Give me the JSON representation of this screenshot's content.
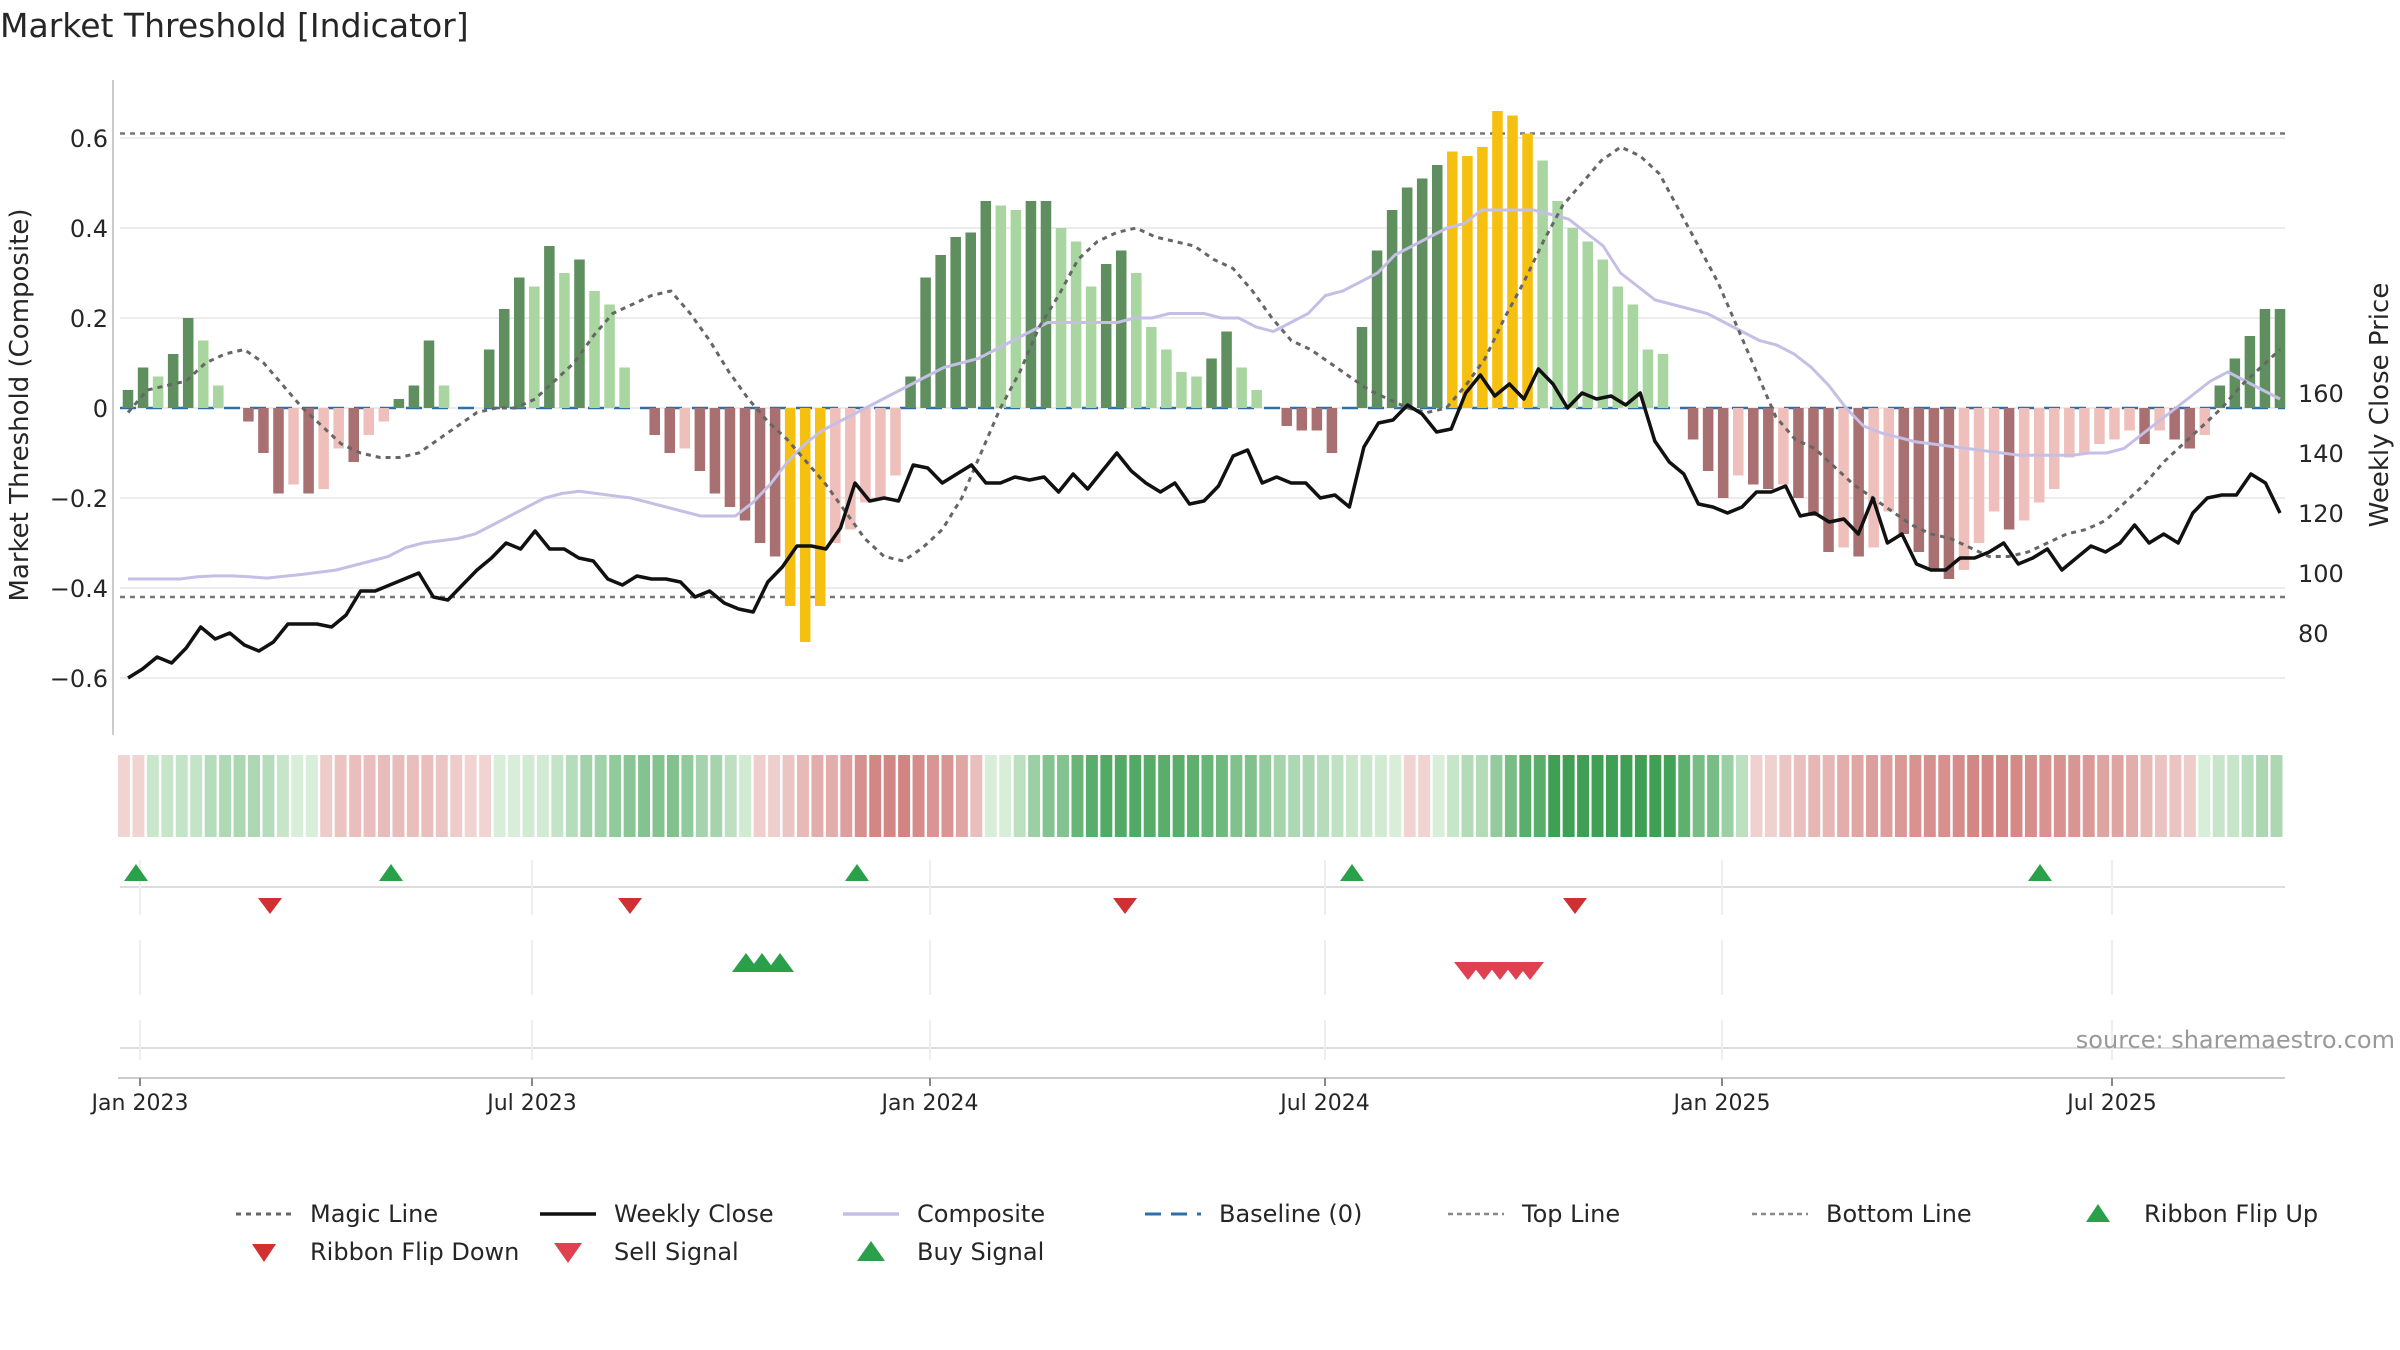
{
  "title": "Market Threshold [Indicator]",
  "source": "source: sharemaestro.com",
  "chart_data": {
    "type": "bar",
    "title": "Market Threshold [Indicator]",
    "ylabel_left": "Market Threshold (Composite)",
    "ylabel_right": "Weekly Close Price",
    "left_ticks": [
      0.6,
      0.4,
      0.2,
      0,
      -0.2,
      -0.4,
      -0.6
    ],
    "left_tick_labels": [
      "0.6",
      "0.4",
      "0.2",
      "0",
      "−0.2",
      "−0.4",
      "−0.6"
    ],
    "right_ticks": [
      160,
      140,
      120,
      100,
      80
    ],
    "right_tick_labels": [
      "160",
      "140",
      "120",
      "100",
      "80"
    ],
    "x_ticks": [
      "Jan 2023",
      "Jul 2023",
      "Jan 2024",
      "Jul 2024",
      "Jan 2025",
      "Jul 2025"
    ],
    "top_line": 0.61,
    "bottom_line": -0.42,
    "composite_bars": [
      0.04,
      0.09,
      0.07,
      0.12,
      0.2,
      0.15,
      0.05,
      0.0,
      -0.03,
      -0.1,
      -0.19,
      -0.17,
      -0.19,
      -0.18,
      -0.09,
      -0.12,
      -0.06,
      -0.03,
      0.02,
      0.05,
      0.15,
      0.05,
      0.0,
      0.0,
      0.13,
      0.22,
      0.29,
      0.27,
      0.36,
      0.3,
      0.33,
      0.26,
      0.23,
      0.09,
      0.0,
      -0.06,
      -0.1,
      -0.09,
      -0.14,
      -0.19,
      -0.22,
      -0.25,
      -0.3,
      -0.33,
      -0.44,
      -0.52,
      -0.44,
      -0.3,
      -0.27,
      -0.21,
      -0.2,
      -0.15,
      0.07,
      0.29,
      0.34,
      0.38,
      0.39,
      0.46,
      0.45,
      0.44,
      0.46,
      0.46,
      0.4,
      0.37,
      0.27,
      0.32,
      0.35,
      0.3,
      0.18,
      0.13,
      0.08,
      0.07,
      0.11,
      0.17,
      0.09,
      0.04,
      0.0,
      -0.04,
      -0.05,
      -0.05,
      -0.1,
      0.0,
      0.18,
      0.35,
      0.44,
      0.49,
      0.51,
      0.54,
      0.57,
      0.56,
      0.58,
      0.66,
      0.65,
      0.61,
      0.55,
      0.46,
      0.4,
      0.37,
      0.33,
      0.27,
      0.23,
      0.13,
      0.12,
      0.0,
      -0.07,
      -0.14,
      -0.2,
      -0.15,
      -0.17,
      -0.18,
      -0.17,
      -0.2,
      -0.24,
      -0.32,
      -0.31,
      -0.33,
      -0.31,
      -0.23,
      -0.28,
      -0.32,
      -0.36,
      -0.38,
      -0.36,
      -0.3,
      -0.23,
      -0.27,
      -0.25,
      -0.21,
      -0.18,
      -0.11,
      -0.1,
      -0.08,
      -0.07,
      -0.05,
      -0.08,
      -0.05,
      -0.07,
      -0.09,
      -0.06,
      0.05,
      0.11,
      0.16,
      0.22,
      0.22
    ],
    "weekly_close": [
      65,
      68,
      72,
      70,
      75,
      82,
      78,
      80,
      76,
      74,
      77,
      83,
      83,
      83,
      82,
      86,
      94,
      94,
      96,
      98,
      100,
      92,
      91,
      96,
      101,
      105,
      110,
      108,
      114,
      108,
      108,
      105,
      104,
      98,
      96,
      99,
      98,
      98,
      97,
      92,
      94,
      90,
      88,
      87,
      97,
      102,
      109,
      109,
      108,
      115,
      130,
      124,
      125,
      124,
      136,
      135,
      130,
      133,
      136,
      130,
      130,
      132,
      131,
      132,
      127,
      133,
      128,
      134,
      140,
      134,
      130,
      127,
      130,
      123,
      124,
      129,
      139,
      141,
      130,
      132,
      130,
      130,
      125,
      126,
      122,
      142,
      150,
      151,
      156,
      153,
      147,
      148,
      160,
      166,
      159,
      163,
      158,
      168,
      163,
      155,
      160,
      158,
      159,
      156,
      160,
      144,
      137,
      133,
      123,
      122,
      120,
      122,
      127,
      127,
      129,
      119,
      120,
      117,
      118,
      113,
      125,
      110,
      113,
      103,
      101,
      101,
      105,
      105,
      107,
      110,
      103,
      105,
      108,
      101,
      105,
      109,
      107,
      110,
      116,
      110,
      113,
      110,
      120,
      125,
      126,
      126,
      133,
      130,
      120
    ],
    "composite_line": [
      -0.38,
      -0.38,
      -0.38,
      -0.38,
      -0.375,
      -0.373,
      -0.373,
      -0.375,
      -0.378,
      -0.374,
      -0.37,
      -0.365,
      -0.36,
      -0.35,
      -0.34,
      -0.33,
      -0.31,
      -0.3,
      -0.295,
      -0.29,
      -0.28,
      -0.26,
      -0.24,
      -0.22,
      -0.2,
      -0.19,
      -0.185,
      -0.19,
      -0.195,
      -0.2,
      -0.21,
      -0.22,
      -0.23,
      -0.24,
      -0.24,
      -0.24,
      -0.21,
      -0.17,
      -0.12,
      -0.08,
      -0.05,
      -0.03,
      -0.01,
      0.01,
      0.03,
      0.05,
      0.07,
      0.09,
      0.1,
      0.11,
      0.13,
      0.15,
      0.17,
      0.19,
      0.19,
      0.19,
      0.19,
      0.19,
      0.2,
      0.2,
      0.21,
      0.21,
      0.21,
      0.2,
      0.2,
      0.18,
      0.17,
      0.19,
      0.21,
      0.25,
      0.26,
      0.28,
      0.3,
      0.34,
      0.36,
      0.38,
      0.4,
      0.41,
      0.44,
      0.44,
      0.44,
      0.44,
      0.43,
      0.42,
      0.39,
      0.36,
      0.3,
      0.27,
      0.24,
      0.23,
      0.22,
      0.21,
      0.19,
      0.17,
      0.15,
      0.14,
      0.12,
      0.09,
      0.05,
      0.0,
      -0.04,
      -0.055,
      -0.065,
      -0.075,
      -0.08,
      -0.085,
      -0.09,
      -0.095,
      -0.1,
      -0.105,
      -0.105,
      -0.105,
      -0.105,
      -0.1,
      -0.1,
      -0.09,
      -0.06,
      -0.03,
      0.0,
      0.03,
      0.06,
      0.08,
      0.06,
      0.04,
      0.02
    ],
    "magic_line": [
      -0.01,
      0.04,
      0.05,
      0.06,
      0.1,
      0.12,
      0.13,
      0.1,
      0.05,
      0.0,
      -0.04,
      -0.08,
      -0.1,
      -0.11,
      -0.11,
      -0.1,
      -0.07,
      -0.04,
      -0.01,
      0.0,
      0.0,
      0.02,
      0.06,
      0.1,
      0.16,
      0.21,
      0.23,
      0.25,
      0.26,
      0.21,
      0.15,
      0.08,
      0.02,
      -0.03,
      -0.07,
      -0.12,
      -0.17,
      -0.23,
      -0.29,
      -0.33,
      -0.34,
      -0.31,
      -0.27,
      -0.2,
      -0.1,
      0.0,
      0.08,
      0.18,
      0.25,
      0.33,
      0.37,
      0.39,
      0.4,
      0.38,
      0.37,
      0.36,
      0.33,
      0.31,
      0.26,
      0.2,
      0.15,
      0.13,
      0.1,
      0.07,
      0.04,
      0.02,
      0.0,
      -0.01,
      0.0,
      0.05,
      0.11,
      0.2,
      0.28,
      0.37,
      0.45,
      0.5,
      0.55,
      0.58,
      0.56,
      0.52,
      0.44,
      0.36,
      0.28,
      0.18,
      0.08,
      -0.02,
      -0.07,
      -0.09,
      -0.13,
      -0.17,
      -0.2,
      -0.23,
      -0.26,
      -0.28,
      -0.29,
      -0.31,
      -0.33,
      -0.33,
      -0.32,
      -0.3,
      -0.28,
      -0.27,
      -0.25,
      -0.21,
      -0.17,
      -0.12,
      -0.08,
      -0.04,
      0.0,
      0.05,
      0.09,
      0.13
    ],
    "ribbon_flip_up": [
      "Jan 2023",
      "Apr 2023",
      "Dec 2023",
      "Jul 2024",
      "Jun 2025"
    ],
    "ribbon_flip_down": [
      "Feb 2023",
      "Aug 2023",
      "Mar 2024",
      "Oct 2024"
    ],
    "buy_signal_count": 3,
    "sell_signal_count": 5,
    "legend": [
      "Magic Line",
      "Weekly Close",
      "Composite",
      "Baseline (0)",
      "Top Line",
      "Bottom Line",
      "Ribbon Flip Up",
      "Ribbon Flip Down",
      "Sell Signal",
      "Buy Signal"
    ],
    "colors": {
      "strong_up": "#5f8f5f",
      "weak_up": "#a8d5a0",
      "strong_down": "#a87070",
      "weak_down": "#efc0bb",
      "extreme": "#f5c010",
      "close": "#111111",
      "composite": "#c5bfe6",
      "baseline": "#2f6fa8",
      "flip_up": "#2aa04a",
      "flip_down": "#d03030",
      "sell": "#e04050"
    }
  }
}
